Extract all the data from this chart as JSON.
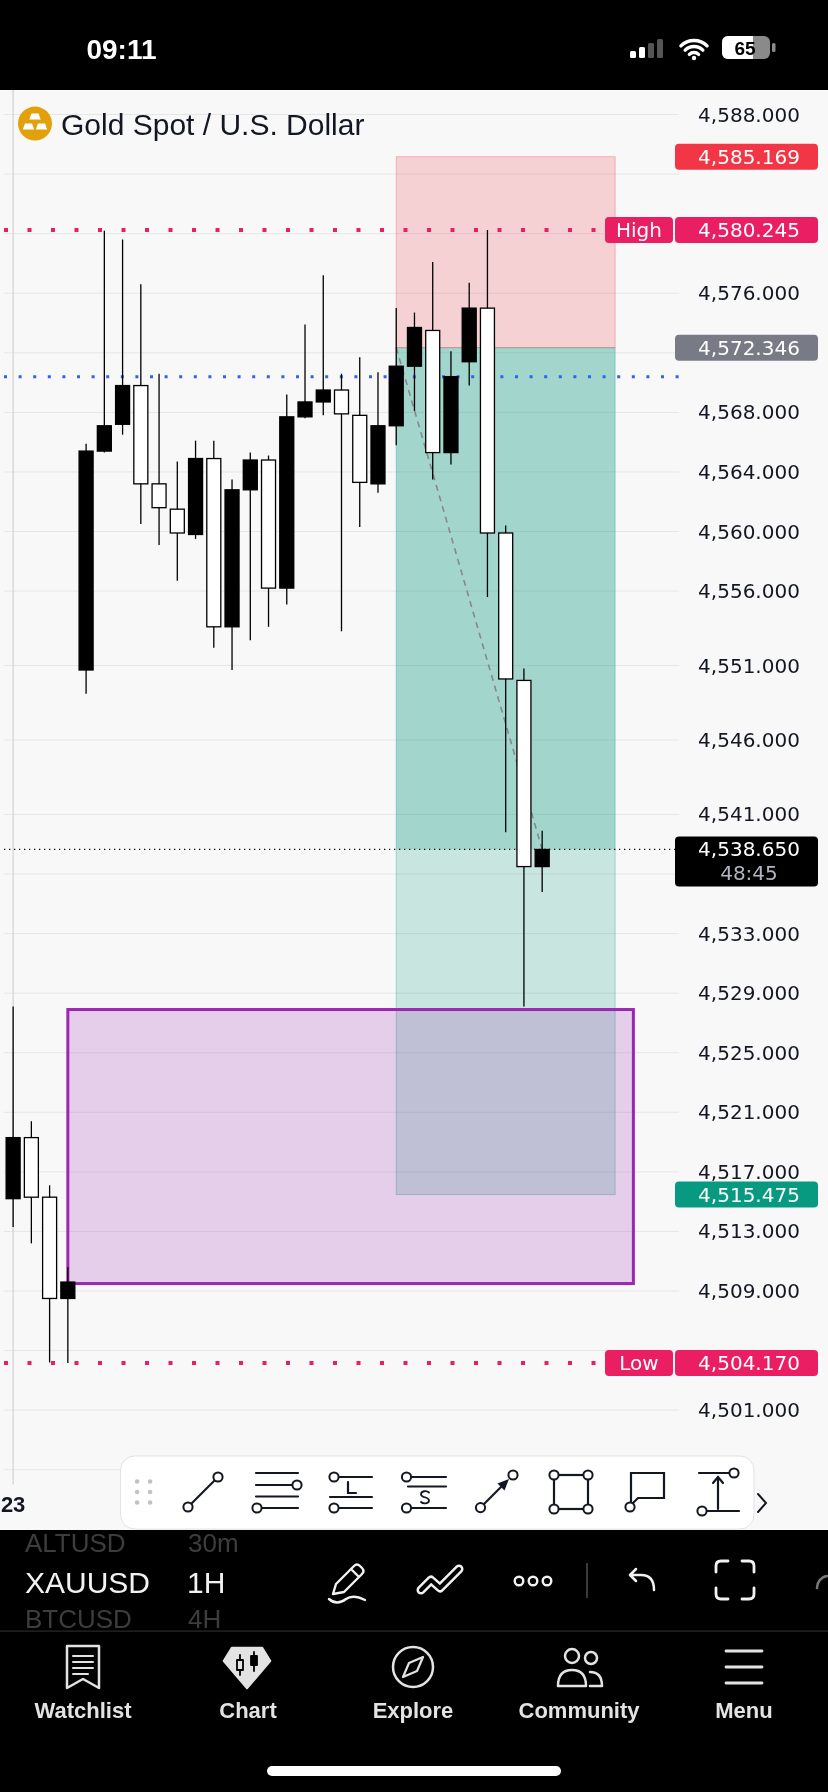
{
  "chart_data": {
    "type": "candlestick",
    "title": "Gold Spot / U.S. Dollar",
    "categories": [
      "23",
      null,
      null,
      null,
      null,
      null,
      null,
      null,
      null,
      null,
      null,
      null,
      null,
      null,
      null,
      null,
      null,
      null,
      null,
      null,
      null,
      null,
      null,
      null,
      null,
      null,
      null,
      null,
      null,
      null,
      null,
      null,
      null,
      null,
      null,
      null,
      null
    ],
    "ohlc": [
      [
        4515.2,
        4528.1,
        4513.3,
        4519.3
      ],
      [
        4519.3,
        4520.4,
        4512.2,
        4515.3
      ],
      [
        4515.3,
        4516.1,
        4504.2,
        4508.5
      ],
      [
        4508.5,
        4510.6,
        4504.17,
        4509.6
      ],
      [
        4550.7,
        4565.9,
        4549.1,
        4565.4
      ],
      [
        4565.4,
        4580.2,
        4565.3,
        4567.1
      ],
      [
        4567.2,
        4579.6,
        4566.5,
        4569.8
      ],
      [
        4569.8,
        4576.6,
        4560.5,
        4563.2
      ],
      [
        4563.2,
        4570.6,
        4559.1,
        4561.6
      ],
      [
        4561.5,
        4564.7,
        4556.7,
        4559.9
      ],
      [
        4559.8,
        4566.1,
        4559.5,
        4564.9
      ],
      [
        4564.9,
        4566.1,
        4552.2,
        4553.6
      ],
      [
        4553.6,
        4563.5,
        4550.7,
        4562.8
      ],
      [
        4562.8,
        4565.3,
        4552.7,
        4564.8
      ],
      [
        4564.8,
        4565.1,
        4553.6,
        4556.2
      ],
      [
        4556.2,
        4569.2,
        4555.1,
        4567.7
      ],
      [
        4567.7,
        4573.9,
        4567.6,
        4568.7
      ],
      [
        4568.7,
        4577.2,
        4567.8,
        4569.5
      ],
      [
        4569.5,
        4570.6,
        4553.3,
        4567.9
      ],
      [
        4567.8,
        4571.7,
        4560.3,
        4563.3
      ],
      [
        4563.2,
        4570.7,
        4562.6,
        4567.1
      ],
      [
        4567.1,
        4575.0,
        4565.8,
        4571.1
      ],
      [
        4571.1,
        4574.7,
        4568.1,
        4573.7
      ],
      [
        4573.5,
        4578.1,
        4563.5,
        4565.3
      ],
      [
        4565.3,
        4572.1,
        4564.5,
        4570.4
      ],
      [
        4571.4,
        4576.7,
        4569.8,
        4575.0
      ],
      [
        4575.0,
        4580.245,
        4555.6,
        4559.9
      ],
      [
        4559.9,
        4560.4,
        4539.8,
        4550.1
      ],
      [
        4550.0,
        4550.8,
        4528.1,
        4537.5
      ],
      [
        4537.5,
        4539.9,
        4535.8,
        4538.65
      ],
      null,
      null,
      null,
      null,
      null,
      null,
      null
    ],
    "colors": [
      "#000000",
      "#ffffff",
      "#ffffff",
      "#000000",
      "#000000",
      "#000000",
      "#000000",
      "#ffffff",
      "#ffffff",
      "#ffffff",
      "#000000",
      "#ffffff",
      "#000000",
      "#000000",
      "#ffffff",
      "#000000",
      "#000000",
      "#000000",
      "#ffffff",
      "#ffffff",
      "#000000",
      "#000000",
      "#000000",
      "#ffffff",
      "#000000",
      "#000000",
      "#ffffff",
      "#ffffff",
      "#ffffff",
      "#000000",
      null,
      null,
      null,
      null,
      null,
      null,
      null
    ],
    "ylim": [
      4496.0,
      4589.6
    ],
    "yticks": [
      {
        "value": 4588,
        "label": "4,588.000"
      },
      {
        "value": 4584,
        "label": null
      },
      {
        "value": 4580,
        "label": null
      },
      {
        "value": 4576,
        "label": "4,576.000"
      },
      {
        "value": 4572,
        "label": null
      },
      {
        "value": 4568,
        "label": "4,568.000"
      },
      {
        "value": 4564,
        "label": "4,564.000"
      },
      {
        "value": 4560,
        "label": "4,560.000"
      },
      {
        "value": 4556,
        "label": "4,556.000"
      },
      {
        "value": 4551,
        "label": "4,551.000"
      },
      {
        "value": 4546,
        "label": "4,546.000"
      },
      {
        "value": 4541,
        "label": "4,541.000"
      },
      {
        "value": 4537,
        "label": null
      },
      {
        "value": 4533,
        "label": "4,533.000"
      },
      {
        "value": 4529,
        "label": "4,529.000"
      },
      {
        "value": 4525,
        "label": "4,525.000"
      },
      {
        "value": 4521,
        "label": "4,521.000"
      },
      {
        "value": 4517,
        "label": "4,517.000"
      },
      {
        "value": 4513,
        "label": "4,513.000"
      },
      {
        "value": 4509,
        "label": "4,509.000"
      },
      {
        "value": 4505,
        "label": null
      },
      {
        "value": 4501,
        "label": "4,501.000"
      },
      {
        "value": 4497,
        "label": null
      }
    ],
    "grid": true,
    "series": [
      {
        "type": "line",
        "color": "#888888",
        "line_style": "dashed",
        "values": [
          null,
          null,
          null,
          null,
          null,
          null,
          null,
          null,
          null,
          null,
          null,
          null,
          null,
          null,
          null,
          null,
          null,
          null,
          null,
          null,
          null,
          4572.346,
          null,
          null,
          null,
          null,
          null,
          null,
          null,
          4538.65,
          null,
          null,
          null,
          null,
          null,
          null,
          null
        ]
      }
    ],
    "ref_lines": [
      {
        "axis": "y",
        "value": 4580.245,
        "label": "High",
        "color": "#e91e63",
        "line_style": "dotted"
      },
      {
        "axis": "y",
        "value": 4570.4,
        "color": "#2962ff",
        "line_style": "dotted"
      },
      {
        "axis": "y",
        "value": 4538.65,
        "color": "#000000",
        "line_style": "dotted"
      },
      {
        "axis": "y",
        "value": 4504.17,
        "label": "Low",
        "color": "#e91e63",
        "line_style": "dotted"
      }
    ],
    "bands": [
      {
        "axis": "y",
        "from": 4515.475,
        "to": 4572.346,
        "color": "#089981"
      },
      {
        "axis": "y",
        "from": 4538.65,
        "to": 4572.346,
        "color": "#089981"
      },
      {
        "axis": "y",
        "from": 4572.346,
        "to": 4585.169,
        "color": "#f23645"
      },
      {
        "axis": "y",
        "from": 4509.5,
        "to": 4527.9,
        "color": "#9c27b0"
      }
    ],
    "annotations": [
      "09:11",
      "65",
      "ALTUSD",
      "30m",
      "XAUUSD",
      "1H",
      "BTCUSD",
      "4H",
      "Watchlist",
      "Chart",
      "Explore",
      "Community",
      "Menu",
      "4,585.169",
      "4,580.245",
      "4,572.346",
      "4,538.650",
      "48:45",
      "4,515.475",
      "4,504.170"
    ]
  }
}
